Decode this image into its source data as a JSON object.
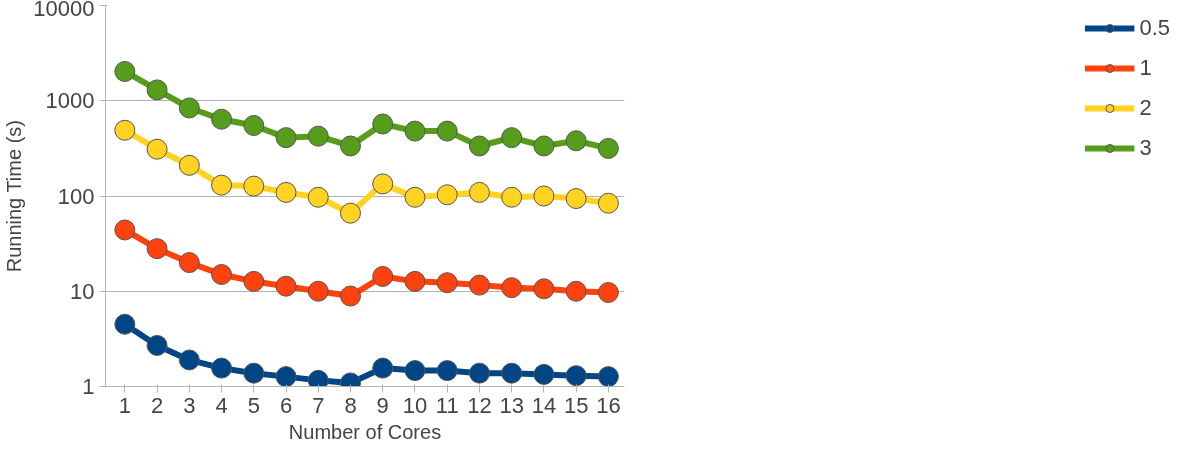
{
  "chart_data": {
    "type": "line",
    "xlabel": "Number of Cores",
    "ylabel": "Running Time (s)",
    "x": [
      1,
      2,
      3,
      4,
      5,
      6,
      7,
      8,
      9,
      10,
      11,
      12,
      13,
      14,
      15,
      16
    ],
    "series": [
      {
        "name": "0.5",
        "color": "#004586",
        "values": [
          4.5,
          2.7,
          1.9,
          1.56,
          1.38,
          1.27,
          1.16,
          1.09,
          1.56,
          1.47,
          1.47,
          1.38,
          1.38,
          1.34,
          1.3,
          1.27
        ]
      },
      {
        "name": "1",
        "color": "#ff420e",
        "values": [
          44,
          28,
          20,
          15,
          12.7,
          11.3,
          10,
          8.9,
          14.3,
          12.7,
          12.3,
          11.6,
          10.9,
          10.6,
          10,
          9.7
        ]
      },
      {
        "name": "2",
        "color": "#ffd320",
        "values": [
          490,
          310,
          210,
          130,
          127,
          109,
          97,
          66,
          134,
          97,
          103,
          109,
          97,
          100,
          94,
          84
        ]
      },
      {
        "name": "3",
        "color": "#579d1c",
        "values": [
          2030,
          1300,
          840,
          640,
          550,
          410,
          425,
          335,
          570,
          480,
          480,
          335,
          410,
          335,
          380,
          316
        ]
      }
    ],
    "log": "y",
    "xlim": [
      0.4,
      16.5
    ],
    "ylim": [
      1,
      10000
    ],
    "xticks": [
      1,
      2,
      3,
      4,
      5,
      6,
      7,
      8,
      9,
      10,
      11,
      12,
      13,
      14,
      15,
      16
    ],
    "yticks": [
      1,
      10,
      100,
      1000,
      10000
    ],
    "grid": "y",
    "legend": "right",
    "marker": "circle",
    "line_style": "solid"
  }
}
